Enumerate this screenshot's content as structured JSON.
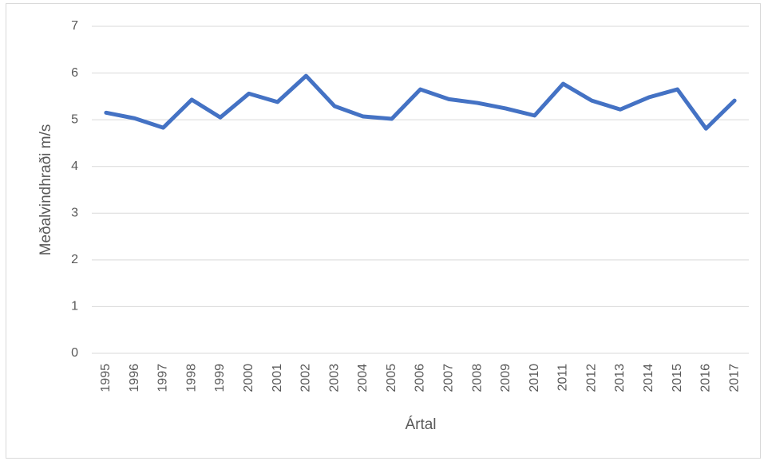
{
  "chart_data": {
    "type": "line",
    "x_label": "Ártal",
    "y_label": "Meðalvindhraði m/s",
    "categories": [
      "1995",
      "1996",
      "1997",
      "1998",
      "1999",
      "2000",
      "2001",
      "2002",
      "2003",
      "2004",
      "2005",
      "2006",
      "2007",
      "2008",
      "2009",
      "2010",
      "2011",
      "2012",
      "2013",
      "2014",
      "2015",
      "2016",
      "2017"
    ],
    "series": [
      {
        "name": "Meðalvindhraði",
        "color": "#4472c4",
        "values": [
          5.15,
          5.03,
          4.83,
          5.43,
          5.05,
          5.56,
          5.38,
          5.94,
          5.29,
          5.07,
          5.02,
          5.65,
          5.44,
          5.36,
          5.24,
          5.09,
          5.77,
          5.41,
          5.22,
          5.48,
          5.65,
          4.81,
          5.41
        ]
      }
    ],
    "ylim": [
      0,
      7
    ],
    "yticks": [
      0,
      1,
      2,
      3,
      4,
      5,
      6,
      7
    ],
    "grid": true
  }
}
